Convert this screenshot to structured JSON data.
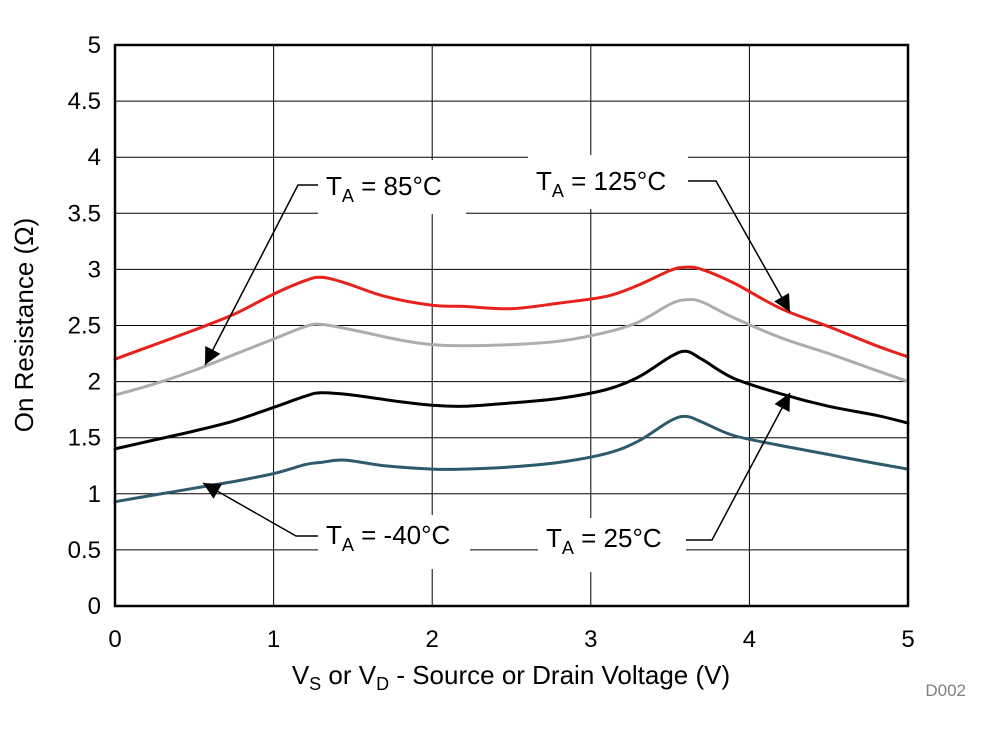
{
  "chart_data": {
    "type": "line",
    "xlabel": {
      "pre": "V",
      "sub1": "S",
      "mid": " or V",
      "sub2": "D",
      "post": " - Source or Drain Voltage (V)"
    },
    "ylabel": "On Resistance (Ω)",
    "xlim": [
      0,
      5
    ],
    "ylim": [
      0,
      5
    ],
    "xticks": [
      "0",
      "1",
      "2",
      "3",
      "4",
      "5"
    ],
    "yticks": [
      "0",
      "0.5",
      "1",
      "1.5",
      "2",
      "2.5",
      "3",
      "3.5",
      "4",
      "4.5",
      "5"
    ],
    "grid": true,
    "code_label": "D002",
    "series": [
      {
        "id": "t125",
        "color": "#e8211c",
        "x": [
          0,
          0.25,
          0.5,
          0.75,
          1.0,
          1.2,
          1.3,
          1.45,
          1.7,
          2.0,
          2.2,
          2.5,
          2.8,
          3.1,
          3.3,
          3.5,
          3.6,
          3.7,
          3.9,
          4.2,
          4.5,
          4.8,
          5.0
        ],
        "y": [
          2.2,
          2.33,
          2.46,
          2.6,
          2.78,
          2.9,
          2.93,
          2.88,
          2.76,
          2.68,
          2.67,
          2.65,
          2.7,
          2.76,
          2.86,
          2.99,
          3.02,
          3.0,
          2.88,
          2.65,
          2.49,
          2.32,
          2.22
        ]
      },
      {
        "id": "t85",
        "color": "#adadad",
        "x": [
          0,
          0.25,
          0.5,
          0.75,
          1.0,
          1.2,
          1.3,
          1.5,
          1.8,
          2.0,
          2.2,
          2.5,
          2.8,
          3.1,
          3.3,
          3.5,
          3.6,
          3.7,
          3.9,
          4.2,
          4.5,
          4.8,
          5.0
        ],
        "y": [
          1.88,
          1.98,
          2.1,
          2.24,
          2.38,
          2.49,
          2.51,
          2.46,
          2.37,
          2.33,
          2.32,
          2.33,
          2.36,
          2.44,
          2.53,
          2.69,
          2.73,
          2.71,
          2.57,
          2.39,
          2.25,
          2.1,
          2.0
        ]
      },
      {
        "id": "t25",
        "color": "#000000",
        "x": [
          0,
          0.25,
          0.5,
          0.75,
          1.0,
          1.2,
          1.3,
          1.5,
          1.8,
          2.0,
          2.2,
          2.5,
          2.8,
          3.1,
          3.3,
          3.5,
          3.6,
          3.7,
          3.9,
          4.2,
          4.5,
          4.8,
          5.0
        ],
        "y": [
          1.4,
          1.48,
          1.56,
          1.65,
          1.77,
          1.87,
          1.9,
          1.88,
          1.82,
          1.79,
          1.78,
          1.81,
          1.85,
          1.93,
          2.04,
          2.22,
          2.27,
          2.2,
          2.03,
          1.89,
          1.78,
          1.7,
          1.63
        ]
      },
      {
        "id": "tm40",
        "color": "#2e5b6b",
        "x": [
          0,
          0.25,
          0.5,
          0.75,
          1.0,
          1.2,
          1.3,
          1.45,
          1.7,
          2.0,
          2.2,
          2.5,
          2.8,
          3.1,
          3.3,
          3.5,
          3.6,
          3.7,
          3.9,
          4.2,
          4.5,
          4.8,
          5.0
        ],
        "y": [
          0.93,
          0.99,
          1.05,
          1.11,
          1.18,
          1.26,
          1.28,
          1.3,
          1.25,
          1.22,
          1.22,
          1.24,
          1.28,
          1.36,
          1.47,
          1.65,
          1.69,
          1.64,
          1.52,
          1.43,
          1.35,
          1.27,
          1.22
        ]
      }
    ],
    "annotations": [
      {
        "id": "ann85",
        "label_pre": "T",
        "label_sub": "A",
        "label_post": " = 85°C"
      },
      {
        "id": "ann125",
        "label_pre": "T",
        "label_sub": "A",
        "label_post": " = 125°C"
      },
      {
        "id": "annm40",
        "label_pre": "T",
        "label_sub": "A",
        "label_post": " = -40°C"
      },
      {
        "id": "ann25",
        "label_pre": "T",
        "label_sub": "A",
        "label_post": " = 25°C"
      }
    ]
  }
}
